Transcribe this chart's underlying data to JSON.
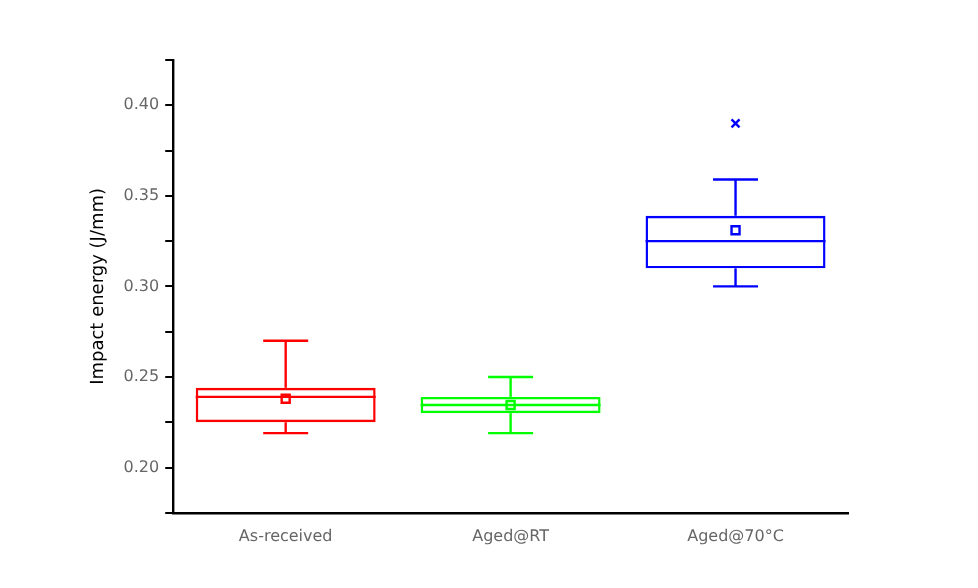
{
  "chart_data": {
    "type": "box",
    "ylabel": "Impact energy (J/mm)",
    "categories": [
      "As-received",
      "Aged@RT",
      "Aged@70°C"
    ],
    "colors": [
      "#ff0000",
      "#00ff00",
      "#0000ff"
    ],
    "boxes": [
      {
        "low": 0.219,
        "q1": 0.225,
        "median": 0.239,
        "q3": 0.244,
        "high": 0.27,
        "mean": 0.238
      },
      {
        "low": 0.219,
        "q1": 0.23,
        "median": 0.2345,
        "q3": 0.239,
        "high": 0.25,
        "mean": 0.2345
      },
      {
        "low": 0.3,
        "q1": 0.31,
        "median": 0.325,
        "q3": 0.339,
        "high": 0.359,
        "mean": 0.331,
        "outliers": [
          0.39
        ]
      }
    ],
    "ylim": [
      0.175,
      0.425
    ],
    "yticks": [
      {
        "value": 0.175,
        "label": null
      },
      {
        "value": 0.2,
        "label": "0.20"
      },
      {
        "value": 0.225,
        "label": null
      },
      0.25,
      {
        "value": 0.275,
        "label": null
      },
      {
        "value": 0.3,
        "label": "0.30"
      },
      {
        "value": 0.325,
        "label": null
      },
      0.35,
      {
        "value": 0.375,
        "label": null
      },
      {
        "value": 0.4,
        "label": "0.40"
      },
      {
        "value": 0.425,
        "label": null
      }
    ],
    "grid": false,
    "legend": false
  }
}
